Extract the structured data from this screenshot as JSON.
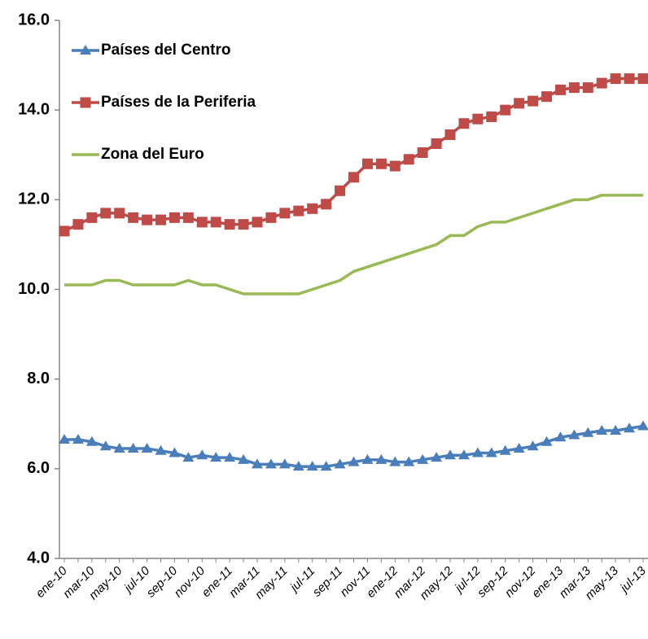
{
  "chart_data": {
    "type": "line",
    "categories": [
      "ene-10",
      null,
      "mar-10",
      null,
      "may-10",
      null,
      "jul-10",
      null,
      "sep-10",
      null,
      "nov-10",
      null,
      "ene-11",
      null,
      "mar-11",
      null,
      "may-11",
      null,
      "jul-11",
      null,
      "sep-11",
      null,
      "nov-11",
      null,
      "ene-12",
      null,
      "mar-12",
      null,
      "may-12",
      null,
      "jul-12",
      null,
      "sep-12",
      null,
      "nov-12",
      null,
      "ene-13",
      null,
      "mar-13",
      null,
      "may-13",
      null,
      "jul-13"
    ],
    "series": [
      {
        "name": "Países del Centro",
        "color": "#4a7ebb",
        "marker": "triangle",
        "values": [
          6.65,
          6.65,
          6.6,
          6.5,
          6.45,
          6.45,
          6.45,
          6.4,
          6.35,
          6.25,
          6.3,
          6.25,
          6.25,
          6.2,
          6.1,
          6.1,
          6.1,
          6.05,
          6.05,
          6.05,
          6.1,
          6.15,
          6.2,
          6.2,
          6.15,
          6.15,
          6.2,
          6.25,
          6.3,
          6.3,
          6.35,
          6.35,
          6.4,
          6.45,
          6.5,
          6.6,
          6.7,
          6.75,
          6.8,
          6.85,
          6.85,
          6.9,
          6.95
        ]
      },
      {
        "name": "Países de la Periferia",
        "color": "#be4b48",
        "marker": "square",
        "values": [
          11.3,
          11.45,
          11.6,
          11.7,
          11.7,
          11.6,
          11.55,
          11.55,
          11.6,
          11.6,
          11.5,
          11.5,
          11.45,
          11.45,
          11.5,
          11.6,
          11.7,
          11.75,
          11.8,
          11.9,
          12.2,
          12.5,
          12.8,
          12.8,
          12.75,
          12.9,
          13.05,
          13.25,
          13.45,
          13.7,
          13.8,
          13.85,
          14.0,
          14.15,
          14.2,
          14.3,
          14.45,
          14.5,
          14.5,
          14.6,
          14.7,
          14.7,
          14.7
        ]
      },
      {
        "name": "Zona del Euro",
        "color": "#98b954",
        "marker": "none",
        "values": [
          10.1,
          10.1,
          10.1,
          10.2,
          10.2,
          10.1,
          10.1,
          10.1,
          10.1,
          10.2,
          10.1,
          10.1,
          10.0,
          9.9,
          9.9,
          9.9,
          9.9,
          9.9,
          10.0,
          10.1,
          10.2,
          10.4,
          10.5,
          10.6,
          10.7,
          10.8,
          10.9,
          11.0,
          11.2,
          11.2,
          11.4,
          11.5,
          11.5,
          11.6,
          11.7,
          11.8,
          11.9,
          12.0,
          12.0,
          12.1,
          12.1,
          12.1,
          12.1
        ]
      }
    ],
    "ylim": [
      4.0,
      16.0
    ],
    "yticks": [
      {
        "value": 4.0,
        "label": "4.0"
      },
      {
        "value": 6.0,
        "label": "6.0"
      },
      {
        "value": 8.0,
        "label": "8.0"
      },
      {
        "value": 10.0,
        "label": "10.0"
      },
      {
        "value": 12.0,
        "label": "12.0"
      },
      {
        "value": 14.0,
        "label": "14.0"
      },
      {
        "value": 16.0,
        "label": "16.0"
      }
    ],
    "legend": "upper left",
    "grid": false
  }
}
